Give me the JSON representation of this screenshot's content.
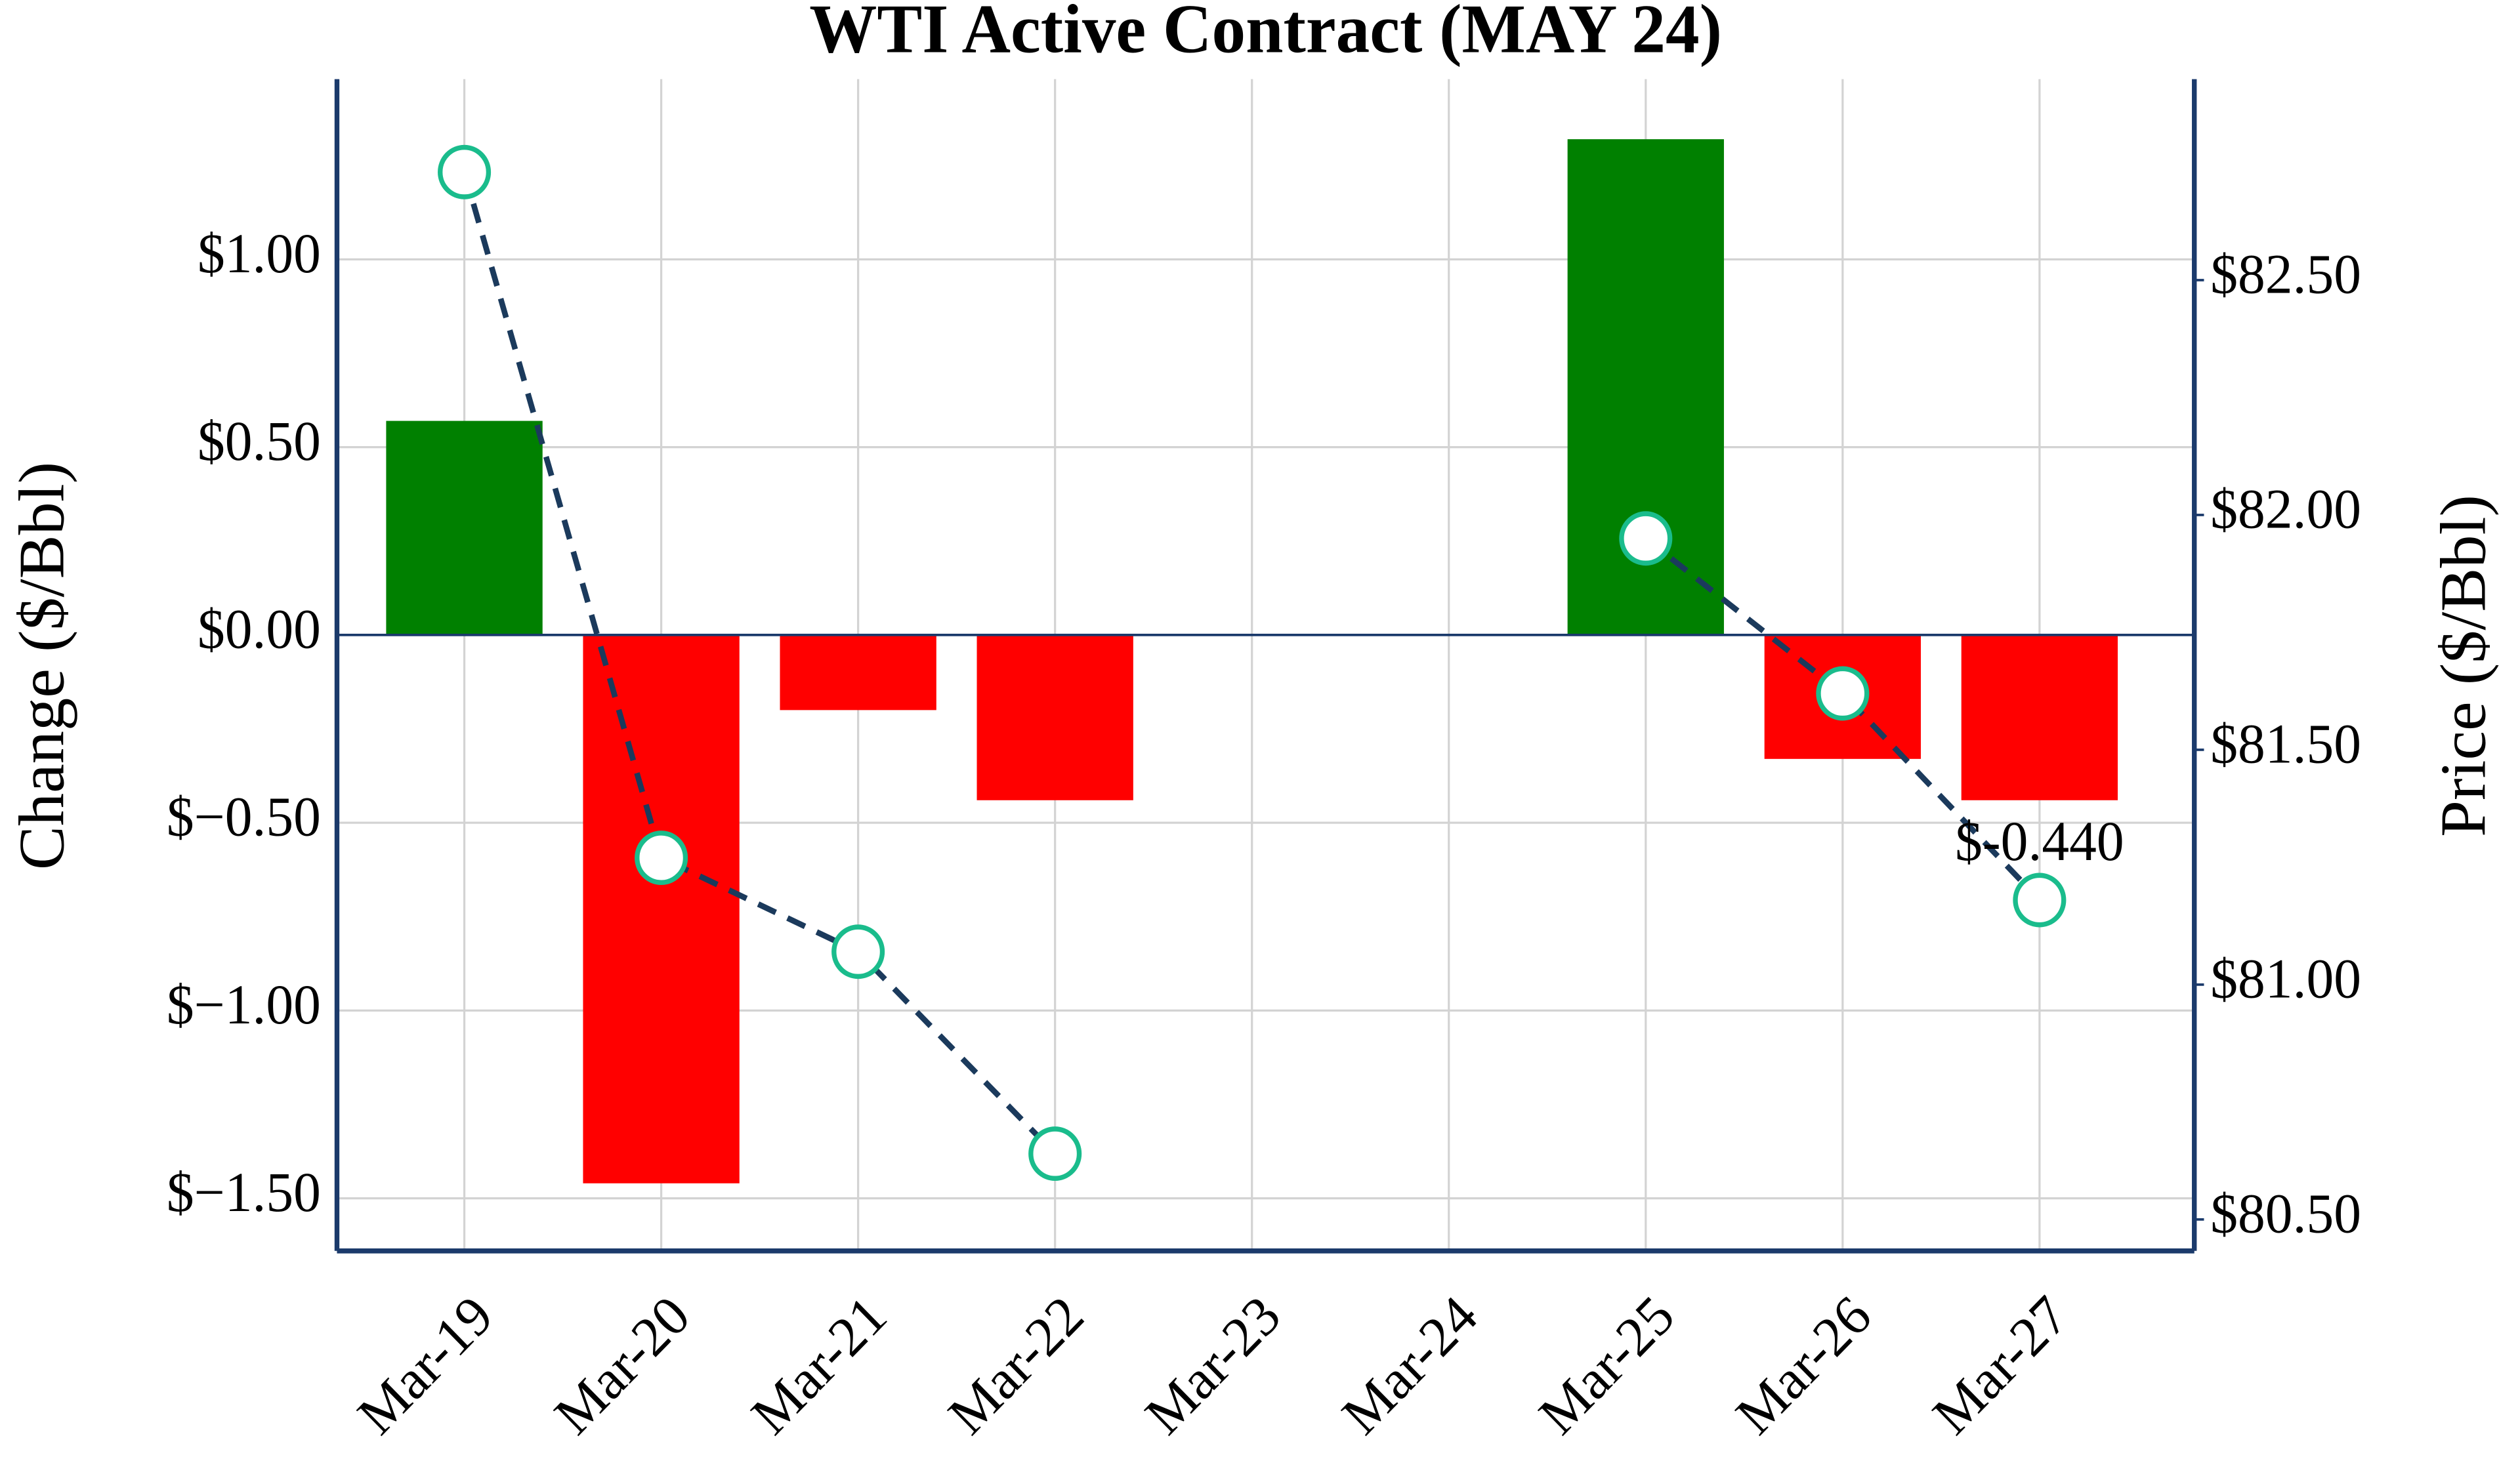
{
  "chart_data": {
    "type": "bar",
    "title": "WTI Active Contract (MAY 24)",
    "ylabel": "Change ($/Bbl)",
    "y2label": "Price ($/Bbl)",
    "categories": [
      "Mar-19",
      "Mar-20",
      "Mar-21",
      "Mar-22",
      "Mar-23",
      "Mar-24",
      "Mar-25",
      "Mar-26",
      "Mar-27"
    ],
    "series": [
      {
        "type": "bar",
        "colors": [
          "#008000",
          "#ff0000",
          "#ff0000",
          "#ff0000",
          null,
          null,
          "#008000",
          "#ff0000",
          "#ff0000"
        ],
        "values": [
          0.57,
          -1.46,
          -0.2,
          -0.44,
          null,
          null,
          1.32,
          -0.33,
          -0.44
        ],
        "value_labels": [
          null,
          null,
          null,
          null,
          null,
          null,
          null,
          null,
          "$-0.440"
        ]
      },
      {
        "type": "line",
        "axis": "y2",
        "color": "#1b3a5c",
        "marker_edge_color": "#1abc8c",
        "values": [
          82.73,
          81.27,
          81.07,
          80.64,
          null,
          null,
          81.95,
          81.62,
          81.18
        ]
      }
    ],
    "ylim": [
      -1.64,
      1.48
    ],
    "yticks": [
      {
        "value": -1.5,
        "label": "$−1.50"
      },
      {
        "value": -1.0,
        "label": "$−1.00"
      },
      {
        "value": -0.5,
        "label": "$−0.50"
      },
      {
        "value": 0,
        "label": "$0.00"
      },
      {
        "value": 0.5,
        "label": "$0.50"
      },
      {
        "value": 1.0,
        "label": "$1.00"
      }
    ],
    "y2lim": [
      80.433,
      82.928
    ],
    "y2ticks": [
      {
        "value": 80.5,
        "label": "$80.50"
      },
      {
        "value": 81.0,
        "label": "$81.00"
      },
      {
        "value": 81.5,
        "label": "$81.50"
      },
      {
        "value": 82.0,
        "label": "$82.00"
      },
      {
        "value": 82.5,
        "label": "$82.50"
      }
    ],
    "grid": true
  }
}
